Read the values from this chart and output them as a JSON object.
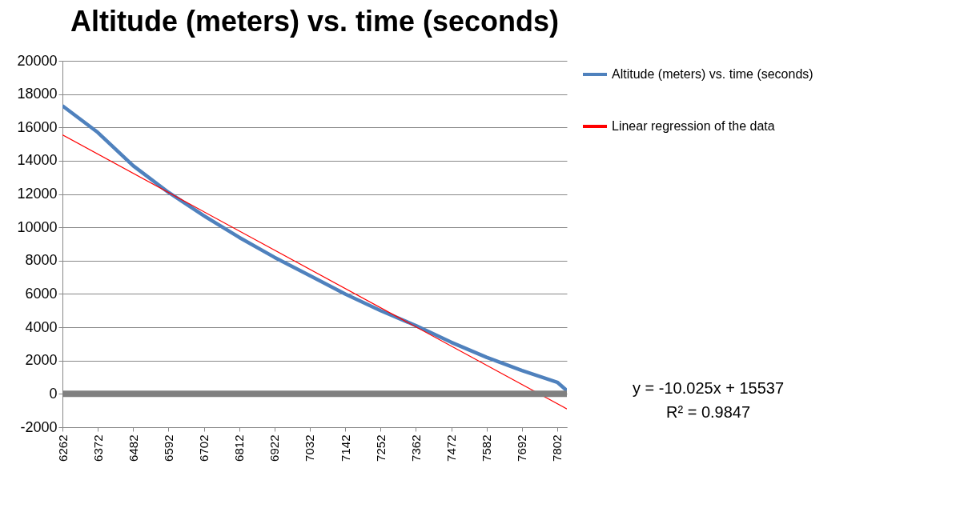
{
  "chart_data": {
    "type": "line",
    "title": "Altitude (meters) vs. time (seconds)",
    "x": [
      6262,
      6372,
      6482,
      6592,
      6702,
      6812,
      6922,
      7032,
      7142,
      7252,
      7362,
      7472,
      7582,
      7692,
      7802,
      7832
    ],
    "series": [
      {
        "name": "Altitude (meters) vs. time (seconds)",
        "color": "#4f81bd",
        "values": [
          17300,
          15700,
          13700,
          12100,
          10700,
          9400,
          8200,
          7100,
          6000,
          5000,
          4100,
          3100,
          2200,
          1400,
          700,
          200
        ]
      },
      {
        "name": "Linear regression of the data",
        "color": "#ff0000",
        "type": "line",
        "x": [
          6262,
          7832
        ],
        "values": [
          15550,
          -900
        ]
      }
    ],
    "xlim": [
      6262,
      7832
    ],
    "xticks": [
      6262,
      6372,
      6482,
      6592,
      6702,
      6812,
      6922,
      7032,
      7142,
      7252,
      7362,
      7472,
      7582,
      7692,
      7802
    ],
    "ylim": [
      -2000,
      20000
    ],
    "yticks": [
      -2000,
      0,
      2000,
      4000,
      6000,
      8000,
      10000,
      12000,
      14000,
      16000,
      18000,
      20000
    ],
    "grid": "y",
    "legend": "right",
    "marker": "none",
    "ref_lines": [
      {
        "axis": "y",
        "value": 0,
        "color": "#808080"
      }
    ],
    "annotations": [
      "y = -10.025x + 15537",
      "R² = 0.9847"
    ]
  }
}
